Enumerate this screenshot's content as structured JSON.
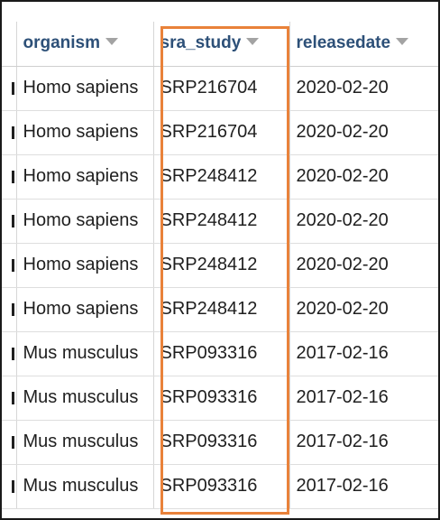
{
  "highlight_color": "#e9823a",
  "columns": [
    {
      "key": "organism",
      "label": "organism"
    },
    {
      "key": "sra_study",
      "label": "sra_study"
    },
    {
      "key": "releasedate",
      "label": "releasedate"
    }
  ],
  "rows": [
    {
      "organism": "Homo sapiens",
      "sra_study": "SRP216704",
      "releasedate": "2020-02-20"
    },
    {
      "organism": "Homo sapiens",
      "sra_study": "SRP216704",
      "releasedate": "2020-02-20"
    },
    {
      "organism": "Homo sapiens",
      "sra_study": "SRP248412",
      "releasedate": "2020-02-20"
    },
    {
      "organism": "Homo sapiens",
      "sra_study": "SRP248412",
      "releasedate": "2020-02-20"
    },
    {
      "organism": "Homo sapiens",
      "sra_study": "SRP248412",
      "releasedate": "2020-02-20"
    },
    {
      "organism": "Homo sapiens",
      "sra_study": "SRP248412",
      "releasedate": "2020-02-20"
    },
    {
      "organism": "Mus musculus",
      "sra_study": "SRP093316",
      "releasedate": "2017-02-16"
    },
    {
      "organism": "Mus musculus",
      "sra_study": "SRP093316",
      "releasedate": "2017-02-16"
    },
    {
      "organism": "Mus musculus",
      "sra_study": "SRP093316",
      "releasedate": "2017-02-16"
    },
    {
      "organism": "Mus musculus",
      "sra_study": "SRP093316",
      "releasedate": "2017-02-16"
    }
  ]
}
